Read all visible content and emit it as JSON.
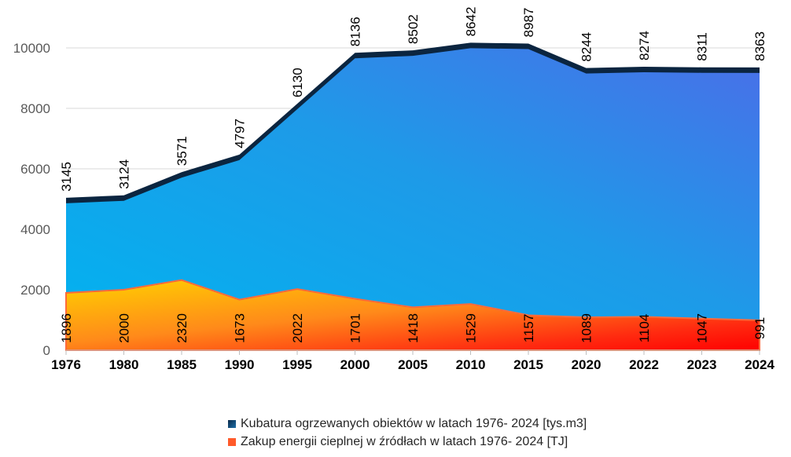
{
  "chart_data": {
    "type": "area",
    "stacked": true,
    "categories": [
      "1976",
      "1980",
      "1985",
      "1990",
      "1995",
      "2000",
      "2005",
      "2010",
      "2015",
      "2020",
      "2022",
      "2023",
      "2024"
    ],
    "series": [
      {
        "name": "Zakup energii cieplnej w źródłach w latach 1976- 2024 [TJ]",
        "values": [
          1896,
          2000,
          2320,
          1673,
          2022,
          1701,
          1418,
          1529,
          1157,
          1089,
          1104,
          1047,
          991
        ],
        "color": "#ff5a1f"
      },
      {
        "name": "Kubatura ogrzewanych obiektów w latach 1976- 2024 [tys.m3]",
        "values": [
          3145,
          3124,
          3571,
          4797,
          6130,
          8136,
          8502,
          8642,
          8987,
          8244,
          8274,
          8311,
          8363
        ],
        "color": "#1aa3ea"
      }
    ],
    "yticks": [
      0,
      2000,
      4000,
      6000,
      8000,
      10000
    ],
    "ylim": [
      0,
      10000
    ],
    "grid": "horizontal",
    "legend_position": "bottom",
    "data_labels": true
  }
}
